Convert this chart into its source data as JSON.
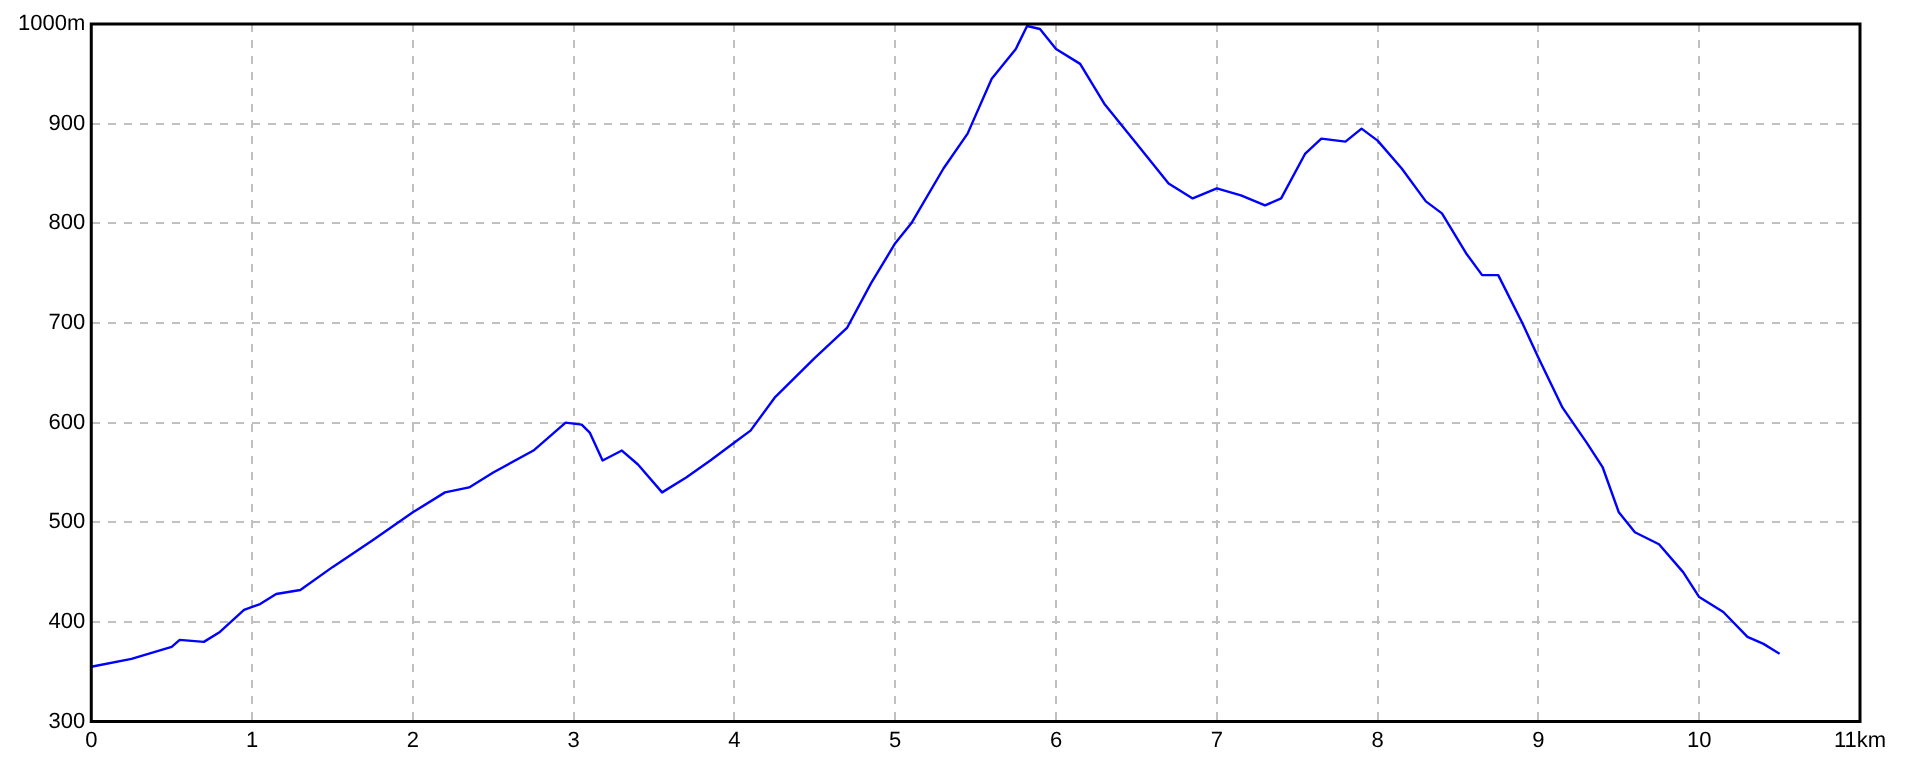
{
  "chart_data": {
    "type": "line",
    "x": [
      0,
      0.25,
      0.5,
      0.55,
      0.7,
      0.8,
      0.95,
      1.05,
      1.15,
      1.3,
      1.5,
      1.75,
      2.0,
      2.2,
      2.35,
      2.5,
      2.75,
      2.95,
      3.05,
      3.1,
      3.18,
      3.3,
      3.4,
      3.55,
      3.7,
      3.85,
      4.0,
      4.1,
      4.25,
      4.5,
      4.7,
      4.85,
      5.0,
      5.1,
      5.3,
      5.45,
      5.6,
      5.75,
      5.82,
      5.9,
      6.0,
      6.15,
      6.3,
      6.5,
      6.7,
      6.85,
      7.0,
      7.15,
      7.3,
      7.4,
      7.55,
      7.65,
      7.8,
      7.9,
      8.0,
      8.15,
      8.3,
      8.4,
      8.55,
      8.65,
      8.75,
      8.9,
      9.0,
      9.15,
      9.3,
      9.4,
      9.5,
      9.6,
      9.75,
      9.9,
      10.0,
      10.15,
      10.3,
      10.4,
      10.5
    ],
    "series": [
      {
        "color": "#0000ff",
        "values": [
          355,
          363,
          375,
          382,
          380,
          390,
          412,
          418,
          428,
          432,
          455,
          482,
          510,
          530,
          535,
          550,
          572,
          600,
          598,
          590,
          562,
          572,
          558,
          530,
          545,
          562,
          580,
          592,
          625,
          665,
          695,
          740,
          780,
          800,
          855,
          890,
          945,
          975,
          998,
          995,
          975,
          960,
          920,
          880,
          840,
          825,
          835,
          828,
          818,
          825,
          870,
          885,
          882,
          895,
          883,
          855,
          822,
          810,
          770,
          748,
          748,
          700,
          665,
          615,
          580,
          555,
          510,
          490,
          478,
          450,
          425,
          410,
          385,
          378,
          368
        ]
      }
    ],
    "xlim": [
      0,
      11
    ],
    "xticks": [
      0,
      1,
      2,
      3,
      4,
      5,
      6,
      7,
      8,
      9,
      10,
      {
        "value": 11,
        "label": "11km"
      }
    ],
    "ylim": [
      300,
      1000
    ],
    "yticks": [
      300,
      400,
      500,
      600,
      700,
      800,
      900,
      {
        "value": 1000,
        "label": "1000m"
      }
    ],
    "grid": true,
    "legend": false,
    "marker": "none",
    "line_style": "solid"
  }
}
